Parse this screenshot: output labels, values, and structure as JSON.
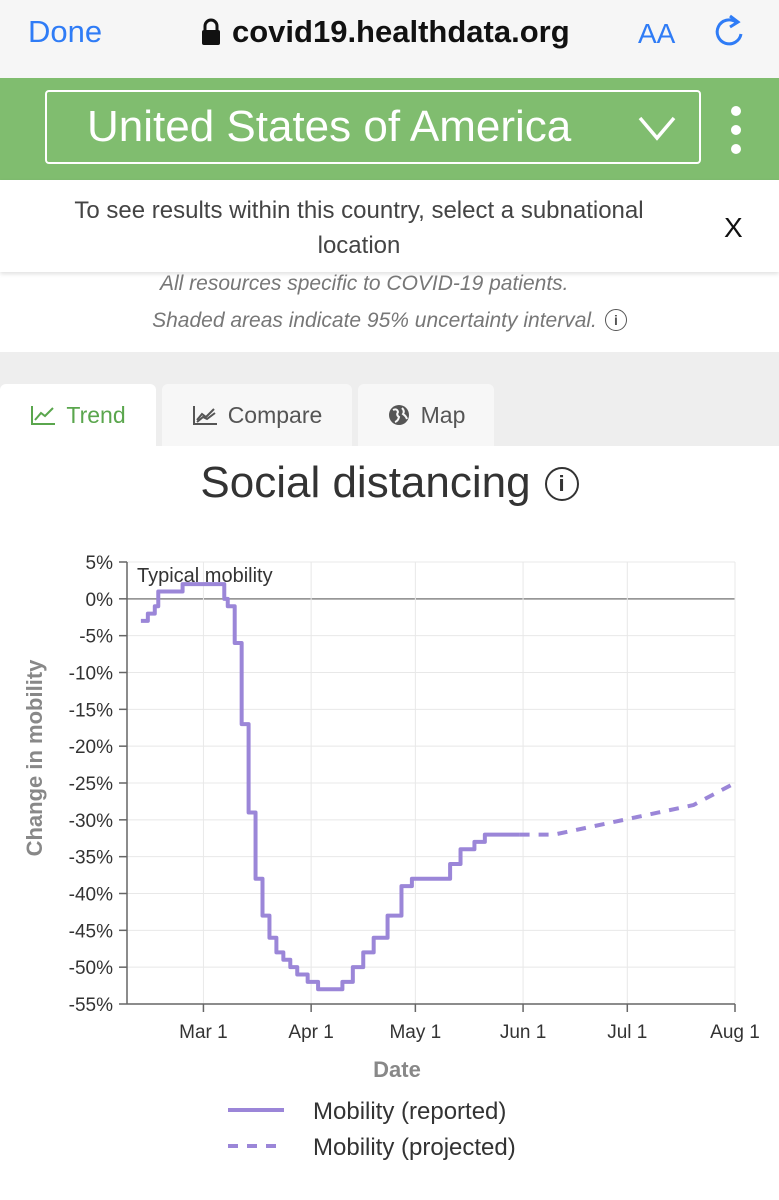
{
  "browser": {
    "done_label": "Done",
    "url": "covid19.healthdata.org",
    "text_size_label": "AA"
  },
  "header": {
    "country": "United States of America",
    "menu_icon": "kebab-icon"
  },
  "notice": {
    "text": "To see results within this country, select a subnational location",
    "close_label": "X"
  },
  "notes": {
    "resources": "All resources specific to COVID-19 patients.",
    "shaded": "Shaded areas indicate 95% uncertainty interval."
  },
  "tabs": [
    {
      "label": "Trend",
      "icon": "trend-icon",
      "active": true
    },
    {
      "label": "Compare",
      "icon": "compare-icon",
      "active": false
    },
    {
      "label": "Map",
      "icon": "globe-icon",
      "active": false
    }
  ],
  "colors": {
    "accent_green": "#80bd6f",
    "series_purple": "#9b86d8",
    "link_blue": "#2f7cf6"
  },
  "chart_data": {
    "type": "line",
    "title": "Social distancing",
    "xlabel": "Date",
    "ylabel": "Change in mobility",
    "x_ticks": [
      "Mar 1",
      "Apr 1",
      "May 1",
      "Jun 1",
      "Jul 1",
      "Aug 1"
    ],
    "y_ticks": [
      "5%",
      "0%",
      "-5%",
      "-10%",
      "-15%",
      "-20%",
      "-25%",
      "-30%",
      "-35%",
      "-40%",
      "-45%",
      "-50%",
      "-55%"
    ],
    "ylim": [
      -55,
      5
    ],
    "xlim": [
      "2020-02-08",
      "2020-08-01"
    ],
    "reference_line": {
      "y": 0,
      "label": "Typical mobility"
    },
    "legend_position": "bottom",
    "series": [
      {
        "name": "Mobility (reported)",
        "style": "solid",
        "x": [
          "2020-02-12",
          "2020-02-14",
          "2020-02-16",
          "2020-02-17",
          "2020-02-19",
          "2020-02-21",
          "2020-02-24",
          "2020-02-27",
          "2020-03-03",
          "2020-03-06",
          "2020-03-07",
          "2020-03-08",
          "2020-03-10",
          "2020-03-12",
          "2020-03-14",
          "2020-03-16",
          "2020-03-18",
          "2020-03-20",
          "2020-03-22",
          "2020-03-24",
          "2020-03-26",
          "2020-03-28",
          "2020-03-31",
          "2020-04-03",
          "2020-04-06",
          "2020-04-10",
          "2020-04-13",
          "2020-04-16",
          "2020-04-19",
          "2020-04-23",
          "2020-04-27",
          "2020-04-30",
          "2020-05-03",
          "2020-05-07",
          "2020-05-11",
          "2020-05-14",
          "2020-05-18",
          "2020-05-21",
          "2020-05-24",
          "2020-05-27",
          "2020-05-31"
        ],
        "y": [
          -3,
          -2,
          -1,
          1,
          1,
          1,
          2,
          2,
          2,
          2,
          0,
          -1,
          -6,
          -17,
          -29,
          -38,
          -43,
          -46,
          -48,
          -49,
          -50,
          -51,
          -52,
          -53,
          -53,
          -52,
          -50,
          -48,
          -46,
          -43,
          -39,
          -38,
          -38,
          -38,
          -36,
          -34,
          -33,
          -32,
          -32,
          -32,
          -32
        ]
      },
      {
        "name": "Mobility (projected)",
        "style": "dashed",
        "x": [
          "2020-05-31",
          "2020-06-10",
          "2020-06-20",
          "2020-06-30",
          "2020-07-10",
          "2020-07-20",
          "2020-08-01"
        ],
        "y": [
          -32,
          -32,
          -31,
          -30,
          -29,
          -28,
          -25
        ]
      }
    ]
  }
}
